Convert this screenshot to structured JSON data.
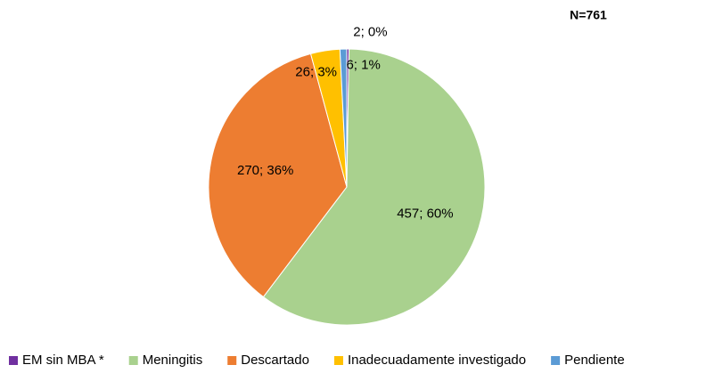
{
  "chart_data": {
    "type": "pie",
    "annotation": "N=761",
    "categories": [
      "EM sin MBA *",
      "Meningitis",
      "Descartado",
      "Inadecuadamente investigado",
      "Pendiente"
    ],
    "values": [
      2,
      457,
      270,
      26,
      6
    ],
    "value_labels": [
      "2; 0%",
      "457; 60%",
      "270; 36%",
      "26; 3%",
      "6; 1%"
    ],
    "colors": [
      "#7030a0",
      "#a9d18e",
      "#ed7d31",
      "#ffc000",
      "#5b9bd5"
    ],
    "legend": "bottom"
  }
}
